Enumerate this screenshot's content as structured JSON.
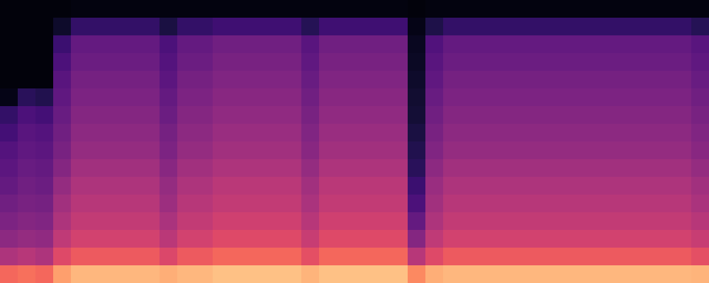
{
  "chart_data": {
    "type": "heatmap",
    "color": "magma",
    "zlim": [
      0,
      100
    ],
    "tick_labels": false,
    "cells": [
      [
        2,
        2,
        2,
        2,
        3,
        3,
        3,
        3,
        3,
        3,
        3,
        3,
        3,
        3,
        3,
        3,
        3,
        3,
        3,
        3,
        3,
        3,
        3,
        2,
        3,
        3,
        3,
        3,
        3,
        3,
        3,
        3,
        3,
        3,
        3,
        3,
        3,
        3,
        3,
        3
      ],
      [
        2,
        2,
        2,
        8,
        18,
        18,
        18,
        18,
        18,
        12,
        18,
        18,
        21,
        21,
        21,
        21,
        21,
        15,
        21,
        21,
        21,
        21,
        21,
        4,
        13,
        18,
        18,
        18,
        18,
        18,
        18,
        18,
        18,
        18,
        18,
        18,
        18,
        18,
        18,
        15
      ],
      [
        2,
        2,
        2,
        20,
        30,
        30,
        30,
        30,
        30,
        24,
        30,
        30,
        33,
        33,
        33,
        33,
        33,
        27,
        33,
        33,
        33,
        33,
        33,
        6,
        25,
        30,
        30,
        30,
        30,
        30,
        30,
        30,
        30,
        30,
        30,
        30,
        30,
        30,
        30,
        27
      ],
      [
        2,
        2,
        2,
        24,
        32,
        32,
        32,
        32,
        32,
        26,
        32,
        32,
        35,
        35,
        35,
        35,
        35,
        29,
        35,
        35,
        35,
        35,
        35,
        7,
        27,
        32,
        32,
        32,
        32,
        32,
        32,
        32,
        32,
        32,
        32,
        32,
        32,
        32,
        32,
        29
      ],
      [
        2,
        2,
        2,
        27,
        34,
        34,
        34,
        34,
        34,
        28,
        34,
        34,
        37,
        37,
        37,
        37,
        37,
        31,
        37,
        37,
        37,
        37,
        37,
        8,
        29,
        34,
        34,
        34,
        34,
        34,
        34,
        34,
        34,
        34,
        34,
        34,
        34,
        34,
        34,
        31
      ],
      [
        4,
        16,
        14,
        29,
        36,
        36,
        36,
        36,
        36,
        30,
        36,
        36,
        39,
        39,
        39,
        39,
        39,
        33,
        39,
        39,
        39,
        39,
        39,
        9,
        31,
        36,
        36,
        36,
        36,
        36,
        36,
        36,
        36,
        36,
        36,
        36,
        36,
        36,
        36,
        33
      ],
      [
        18,
        24,
        22,
        31,
        38,
        38,
        38,
        38,
        38,
        32,
        38,
        38,
        41,
        41,
        41,
        41,
        41,
        35,
        41,
        41,
        41,
        41,
        41,
        10,
        33,
        38,
        38,
        38,
        38,
        38,
        38,
        38,
        38,
        38,
        38,
        38,
        38,
        38,
        38,
        35
      ],
      [
        22,
        27,
        26,
        33,
        40,
        40,
        40,
        40,
        40,
        34,
        40,
        40,
        43,
        43,
        43,
        43,
        43,
        37,
        43,
        43,
        43,
        43,
        43,
        12,
        35,
        40,
        40,
        40,
        40,
        40,
        40,
        40,
        40,
        40,
        40,
        40,
        40,
        40,
        40,
        37
      ],
      [
        26,
        29,
        28,
        35,
        42,
        42,
        42,
        42,
        42,
        36,
        42,
        42,
        45,
        45,
        45,
        45,
        45,
        39,
        45,
        45,
        45,
        45,
        45,
        14,
        37,
        42,
        42,
        42,
        42,
        42,
        42,
        42,
        42,
        42,
        42,
        42,
        42,
        42,
        42,
        39
      ],
      [
        28,
        31,
        30,
        38,
        45,
        45,
        45,
        45,
        45,
        39,
        45,
        45,
        48,
        48,
        48,
        48,
        48,
        42,
        48,
        48,
        48,
        48,
        48,
        16,
        40,
        45,
        45,
        45,
        45,
        45,
        45,
        45,
        45,
        45,
        45,
        45,
        45,
        45,
        45,
        42
      ],
      [
        30,
        33,
        32,
        42,
        48,
        48,
        48,
        48,
        48,
        42,
        48,
        48,
        51,
        51,
        51,
        51,
        51,
        45,
        51,
        51,
        51,
        51,
        51,
        20,
        43,
        48,
        48,
        48,
        48,
        48,
        48,
        48,
        48,
        48,
        48,
        48,
        48,
        48,
        48,
        45
      ],
      [
        33,
        35,
        34,
        45,
        50,
        50,
        50,
        50,
        50,
        44,
        50,
        50,
        53,
        53,
        53,
        53,
        53,
        47,
        53,
        53,
        53,
        53,
        53,
        24,
        45,
        50,
        50,
        50,
        50,
        50,
        50,
        50,
        50,
        50,
        50,
        50,
        50,
        50,
        50,
        47
      ],
      [
        36,
        38,
        37,
        48,
        53,
        53,
        53,
        53,
        53,
        47,
        53,
        53,
        56,
        56,
        56,
        56,
        56,
        50,
        56,
        56,
        56,
        56,
        56,
        30,
        48,
        53,
        53,
        53,
        53,
        53,
        53,
        53,
        53,
        53,
        53,
        53,
        53,
        53,
        53,
        50
      ],
      [
        40,
        42,
        41,
        52,
        57,
        57,
        57,
        57,
        57,
        51,
        57,
        57,
        60,
        60,
        60,
        60,
        60,
        54,
        60,
        60,
        60,
        60,
        60,
        38,
        52,
        57,
        57,
        57,
        57,
        57,
        57,
        57,
        57,
        57,
        57,
        57,
        57,
        57,
        57,
        54
      ],
      [
        48,
        50,
        48,
        60,
        65,
        65,
        65,
        65,
        65,
        59,
        65,
        65,
        68,
        68,
        68,
        68,
        68,
        62,
        68,
        68,
        68,
        68,
        68,
        50,
        60,
        65,
        65,
        65,
        65,
        65,
        65,
        65,
        65,
        65,
        65,
        65,
        65,
        65,
        65,
        62
      ],
      [
        68,
        70,
        68,
        80,
        85,
        85,
        85,
        85,
        85,
        83,
        85,
        85,
        87,
        87,
        87,
        87,
        87,
        84,
        87,
        87,
        87,
        87,
        87,
        75,
        83,
        85,
        85,
        85,
        85,
        85,
        85,
        85,
        85,
        85,
        85,
        85,
        85,
        85,
        85,
        84
      ]
    ]
  }
}
